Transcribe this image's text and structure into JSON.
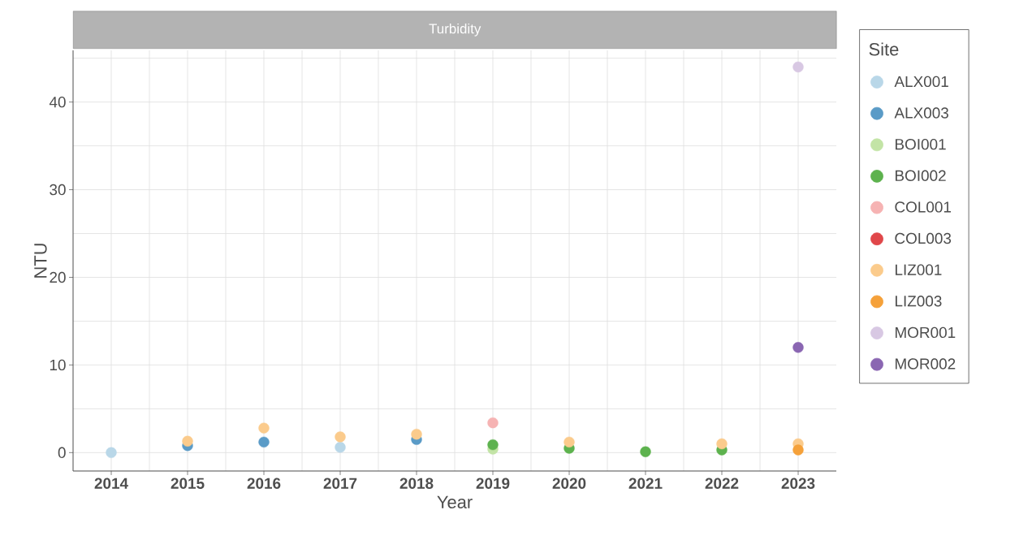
{
  "chart_data": {
    "type": "scatter",
    "title": "Turbidity",
    "xlabel": "Year",
    "ylabel": "NTU",
    "legend_title": "Site",
    "legend": "right",
    "grid": true,
    "marker": "circle",
    "categories": [
      "2014",
      "2015",
      "2016",
      "2017",
      "2018",
      "2019",
      "2020",
      "2021",
      "2022",
      "2023"
    ],
    "ylim": [
      -2.1,
      45.9
    ],
    "yticks": [
      0,
      10,
      20,
      30,
      40
    ],
    "series": [
      {
        "name": "ALX001",
        "color": "#b9d7e8",
        "values": [
          0,
          null,
          null,
          0.6,
          null,
          null,
          null,
          null,
          null,
          null
        ]
      },
      {
        "name": "ALX003",
        "color": "#5a9bc7",
        "values": [
          null,
          0.8,
          1.2,
          null,
          1.5,
          null,
          null,
          null,
          null,
          null
        ]
      },
      {
        "name": "BOI001",
        "color": "#c3e4a6",
        "values": [
          null,
          null,
          null,
          null,
          null,
          0.4,
          null,
          null,
          null,
          null
        ]
      },
      {
        "name": "BOI002",
        "color": "#5db24e",
        "values": [
          null,
          null,
          null,
          null,
          null,
          0.9,
          0.5,
          0.1,
          0.3,
          null
        ]
      },
      {
        "name": "COL001",
        "color": "#f6b3b3",
        "values": [
          null,
          null,
          null,
          null,
          null,
          3.4,
          null,
          null,
          null,
          null
        ]
      },
      {
        "name": "COL003",
        "color": "#e0474a",
        "values": [
          null,
          null,
          null,
          null,
          null,
          null,
          null,
          null,
          null,
          null
        ]
      },
      {
        "name": "LIZ001",
        "color": "#fbcb8c",
        "values": [
          null,
          1.3,
          2.8,
          1.8,
          2.1,
          null,
          1.2,
          null,
          1.0,
          1.0
        ]
      },
      {
        "name": "LIZ003",
        "color": "#f5a13a",
        "values": [
          null,
          null,
          null,
          null,
          null,
          null,
          null,
          null,
          null,
          0.3
        ]
      },
      {
        "name": "MOR001",
        "color": "#d8c8e3",
        "values": [
          null,
          null,
          null,
          null,
          null,
          null,
          null,
          null,
          null,
          44
        ]
      },
      {
        "name": "MOR002",
        "color": "#8a66b2",
        "values": [
          null,
          null,
          null,
          null,
          null,
          null,
          null,
          null,
          null,
          12
        ]
      }
    ]
  }
}
